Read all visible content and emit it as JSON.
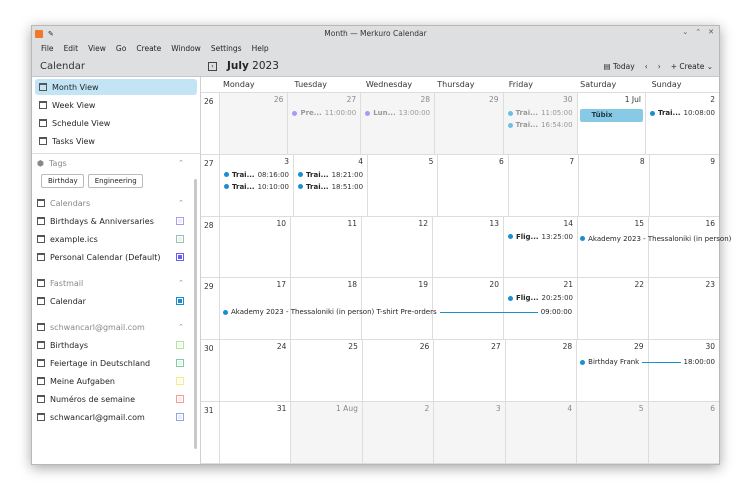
{
  "window": {
    "title": "Month — Merkuro Calendar"
  },
  "menu": [
    "File",
    "Edit",
    "View",
    "Go",
    "Create",
    "Window",
    "Settings",
    "Help"
  ],
  "toolbar": {
    "sidebar_title": "Calendar",
    "month": "July",
    "year": "2023",
    "today": "Today",
    "create": "Create"
  },
  "views": [
    {
      "label": "Month View",
      "selected": true
    },
    {
      "label": "Week View"
    },
    {
      "label": "Schedule View"
    },
    {
      "label": "Tasks View"
    }
  ],
  "tags": {
    "title": "Tags",
    "items": [
      "Birthday",
      "Engineering"
    ]
  },
  "sources": [
    {
      "title": "Calendars",
      "items": [
        {
          "label": "Birthdays & Anniversaries",
          "color": "#a49df5",
          "checked": false
        },
        {
          "label": "example.ics",
          "color": "#9bbdb8",
          "checked": false
        },
        {
          "label": "Personal Calendar (Default)",
          "color": "#6a5cf0",
          "checked": true
        }
      ]
    },
    {
      "title": "Fastmail",
      "items": [
        {
          "label": "Calendar",
          "color": "#1a8ecf",
          "checked": true
        }
      ]
    },
    {
      "title": "schwancarl@gmail.com",
      "items": [
        {
          "label": "Birthdays",
          "color": "#b5e59a",
          "checked": false
        },
        {
          "label": "Feiertage in Deutschland",
          "color": "#7bd0a3",
          "checked": false
        },
        {
          "label": "Meine Aufgaben",
          "color": "#f0ee8a",
          "checked": false
        },
        {
          "label": "Numéros de semaine",
          "color": "#f29c92",
          "checked": false
        },
        {
          "label": "schwancarl@gmail.com",
          "color": "#8fa5e0",
          "checked": false
        }
      ]
    }
  ],
  "weekdays": [
    "Monday",
    "Tuesday",
    "Wednesday",
    "Thursday",
    "Friday",
    "Saturday",
    "Sunday"
  ],
  "weeks": [
    {
      "num": "26",
      "days": [
        {
          "d": "26",
          "o": true
        },
        {
          "d": "27",
          "o": true
        },
        {
          "d": "28",
          "o": true
        },
        {
          "d": "29",
          "o": true
        },
        {
          "d": "30",
          "o": true
        },
        {
          "d": "1 Jul"
        },
        {
          "d": "2"
        }
      ]
    },
    {
      "num": "27",
      "days": [
        {
          "d": "3"
        },
        {
          "d": "4"
        },
        {
          "d": "5"
        },
        {
          "d": "6"
        },
        {
          "d": "7"
        },
        {
          "d": "8"
        },
        {
          "d": "9"
        }
      ]
    },
    {
      "num": "28",
      "days": [
        {
          "d": "10"
        },
        {
          "d": "11"
        },
        {
          "d": "12"
        },
        {
          "d": "13"
        },
        {
          "d": "14"
        },
        {
          "d": "15"
        },
        {
          "d": "16"
        }
      ]
    },
    {
      "num": "29",
      "days": [
        {
          "d": "17"
        },
        {
          "d": "18"
        },
        {
          "d": "19"
        },
        {
          "d": "20"
        },
        {
          "d": "21"
        },
        {
          "d": "22"
        },
        {
          "d": "23"
        }
      ]
    },
    {
      "num": "30",
      "days": [
        {
          "d": "24"
        },
        {
          "d": "25"
        },
        {
          "d": "26"
        },
        {
          "d": "27"
        },
        {
          "d": "28"
        },
        {
          "d": "29"
        },
        {
          "d": "30"
        }
      ]
    },
    {
      "num": "31",
      "days": [
        {
          "d": "31"
        },
        {
          "d": "1 Aug",
          "o": true
        },
        {
          "d": "2",
          "o": true
        },
        {
          "d": "3",
          "o": true
        },
        {
          "d": "4",
          "o": true
        },
        {
          "d": "5",
          "o": true
        },
        {
          "d": "6",
          "o": true
        }
      ]
    }
  ],
  "events": [
    {
      "week": 0,
      "day": 1,
      "title": "Pre...",
      "time": "11:00:00",
      "color": "#a49df5"
    },
    {
      "week": 0,
      "day": 2,
      "title": "Lun...",
      "time": "13:00:00",
      "color": "#a49df5"
    },
    {
      "week": 0,
      "day": 4,
      "title": "Trai...",
      "time": "11:05:00",
      "color": "#6fbfdf"
    },
    {
      "week": 0,
      "day": 4,
      "title": "Trai...",
      "time": "16:54:00",
      "color": "#6fbfdf"
    },
    {
      "week": 0,
      "day": 5,
      "title": "Tübix",
      "block": true
    },
    {
      "week": 0,
      "day": 6,
      "title": "Trai...",
      "time": "10:08:00",
      "color": "#1a8ecf"
    },
    {
      "week": 1,
      "day": 0,
      "title": "Trai...",
      "time": "08:16:00",
      "color": "#1a8ecf"
    },
    {
      "week": 1,
      "day": 0,
      "title": "Trai...",
      "time": "10:10:00",
      "color": "#1a8ecf"
    },
    {
      "week": 1,
      "day": 1,
      "title": "Trai...",
      "time": "18:21:00",
      "color": "#1a8ecf"
    },
    {
      "week": 1,
      "day": 1,
      "title": "Trai...",
      "time": "18:51:00",
      "color": "#1a8ecf"
    },
    {
      "week": 2,
      "day": 4,
      "title": "Flig...",
      "time": "13:25:00",
      "color": "#1a8ecf"
    },
    {
      "week": 3,
      "day": 4,
      "title": "Flig...",
      "time": "20:25:00",
      "color": "#1a8ecf"
    }
  ],
  "spans": [
    {
      "week": 2,
      "start": 5,
      "end": 6,
      "row": 0,
      "title": "Akademy 2023 - Thessaloniki (in person)",
      "time": "",
      "color": "#1a8ecf"
    },
    {
      "week": 3,
      "start": 0,
      "end": 4,
      "row": 1,
      "title": "Akademy 2023 - Thessaloniki (in person) T-shirt Pre-orders",
      "time": "09:00:00",
      "color": "#1a8ecf"
    },
    {
      "week": 4,
      "start": 5,
      "end": 6,
      "row": 0,
      "title": "Birthday Frank",
      "time": "18:00:00",
      "color": "#1a8ecf"
    }
  ]
}
